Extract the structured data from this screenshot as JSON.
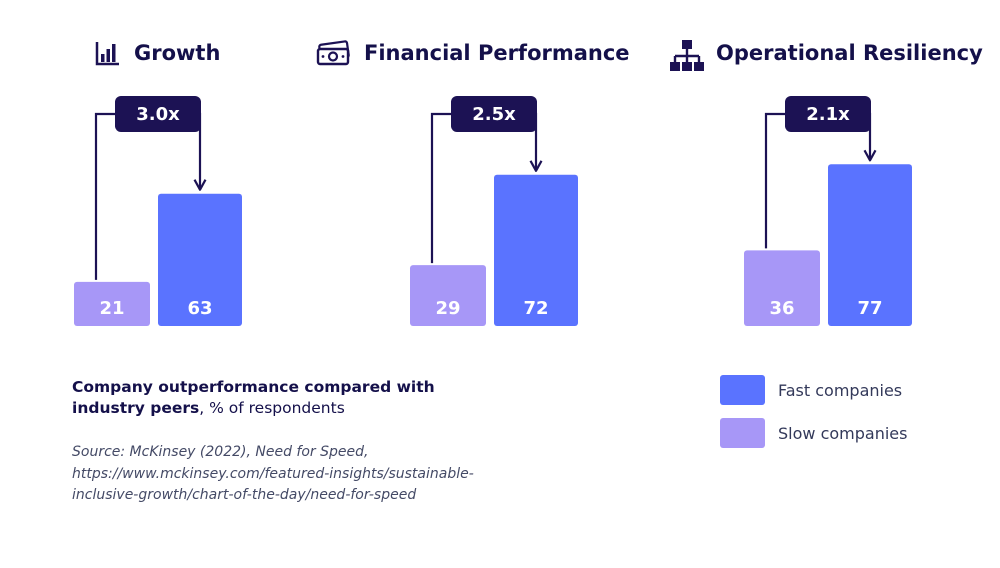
{
  "chart_data": {
    "type": "bar",
    "colors": {
      "fast": "#5a73ff",
      "slow": "#a797f7",
      "dark": "#1c1254"
    },
    "series": [
      {
        "name": "Slow companies",
        "key": "slow",
        "values": [
          21,
          29,
          36
        ]
      },
      {
        "name": "Fast companies",
        "key": "fast",
        "values": [
          63,
          72,
          77
        ]
      }
    ],
    "panels": [
      {
        "title": "Growth",
        "icon": "bar-chart-icon",
        "ratio": "3.0x",
        "slow": 21,
        "fast": 63
      },
      {
        "title": "Financial Performance",
        "icon": "money-icon",
        "ratio": "2.5x",
        "slow": 29,
        "fast": 72
      },
      {
        "title": "Operational Resiliency",
        "icon": "hierarchy-icon",
        "ratio": "2.1x",
        "slow": 36,
        "fast": 77
      }
    ]
  },
  "caption": {
    "bold": "Company outperformance compared with industry peers",
    "rest": ", % of respondents"
  },
  "source": {
    "line1": "Source: McKinsey (2022), Need for Speed,",
    "line2": "https://www.mckinsey.com/featured-insights/sustainable-",
    "line3": "inclusive-growth/chart-of-the-day/need-for-speed"
  },
  "legend": [
    {
      "label": "Fast companies",
      "color": "#5a73ff"
    },
    {
      "label": "Slow companies",
      "color": "#a797f7"
    }
  ]
}
